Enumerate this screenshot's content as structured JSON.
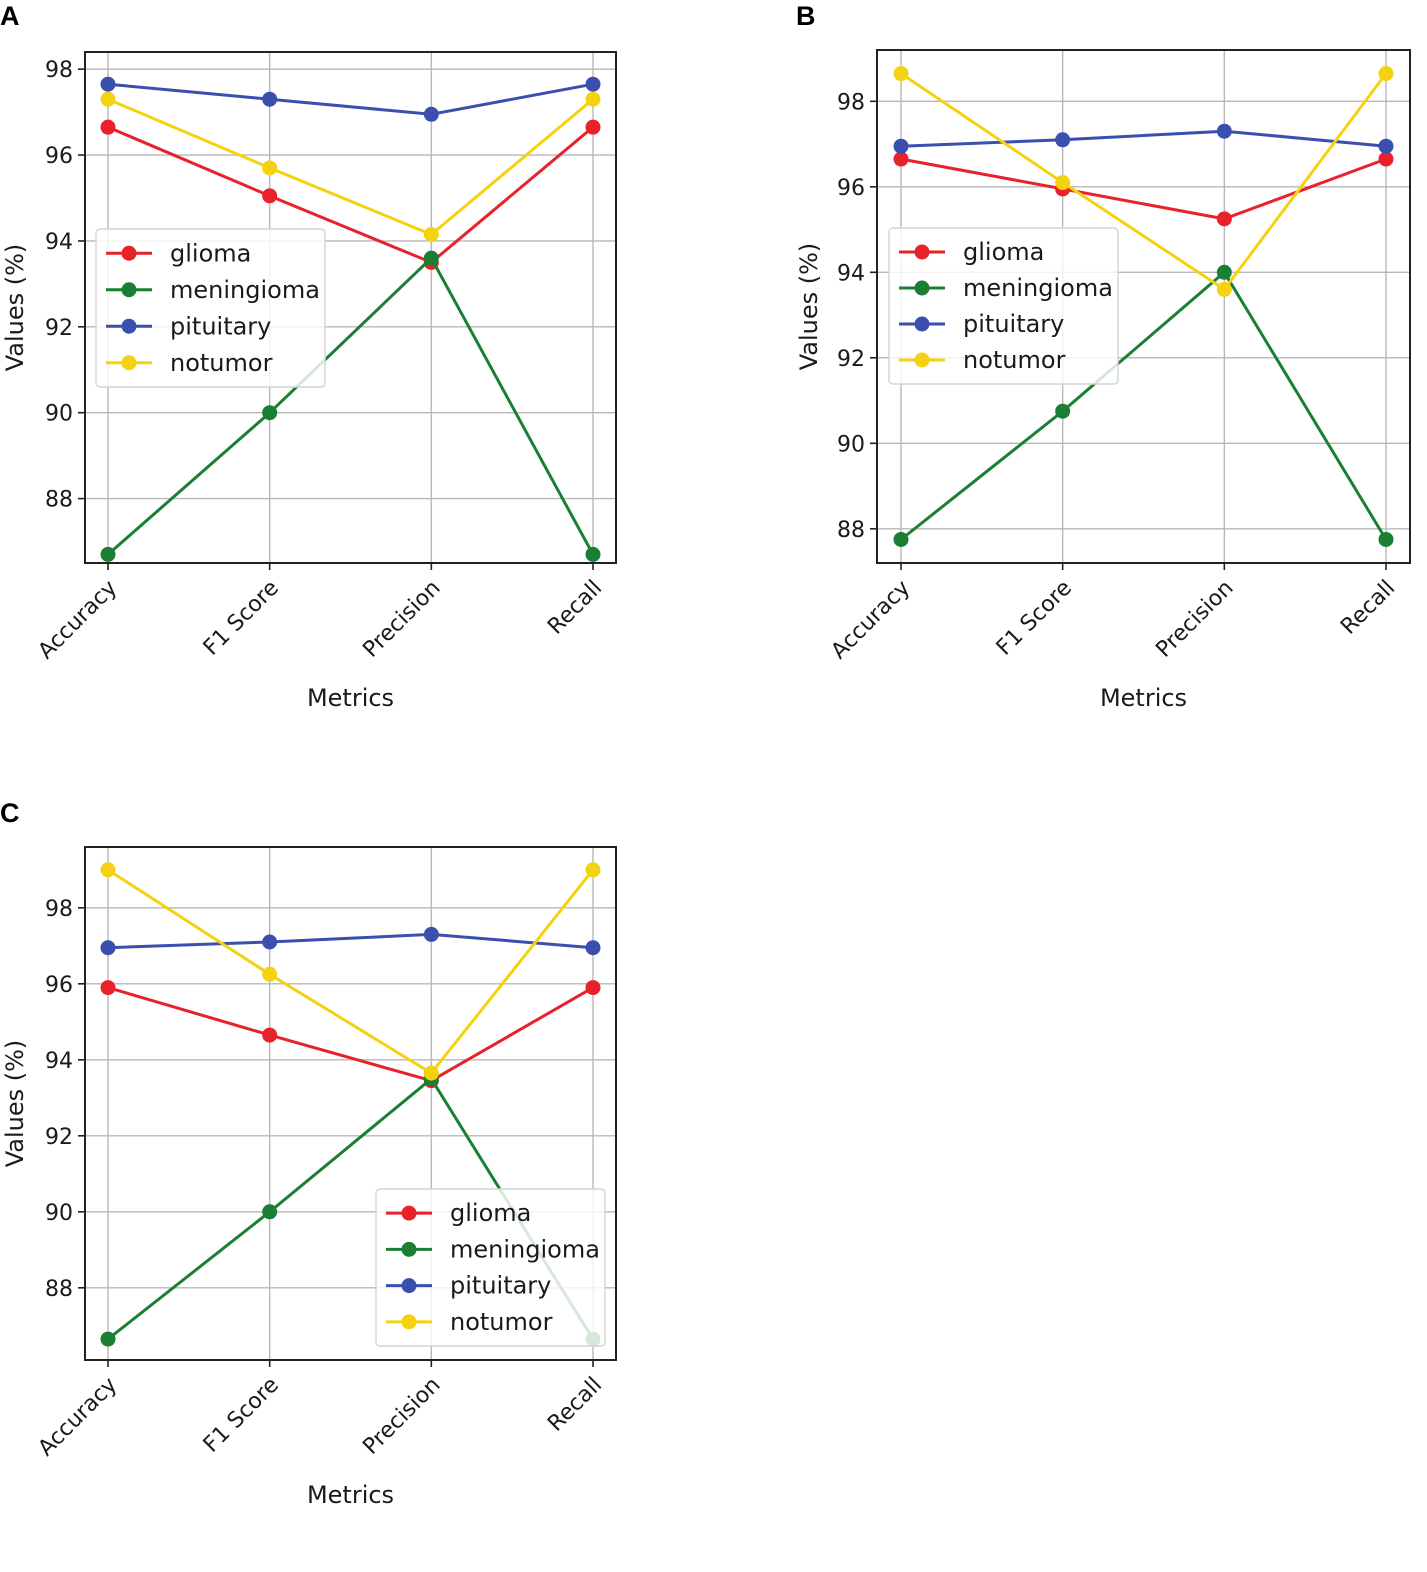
{
  "figure_labels": [
    "A",
    "B",
    "C"
  ],
  "chart_data": [
    {
      "panel": "A",
      "type": "line",
      "title": "",
      "xlabel": "Metrics",
      "ylabel": "Values (%)",
      "categories": [
        "Accuracy",
        "F1 Score",
        "Precision",
        "Recall"
      ],
      "ylim": [
        86.5,
        98.4
      ],
      "yticks": [
        88,
        90,
        92,
        94,
        96,
        98
      ],
      "grid": true,
      "legend_position": "center-left",
      "series": [
        {
          "name": "glioma",
          "color": "#e8222a",
          "values": [
            96.65,
            95.05,
            93.5,
            96.65
          ]
        },
        {
          "name": "meningioma",
          "color": "#1a7f34",
          "values": [
            86.7,
            90.0,
            93.6,
            86.7
          ]
        },
        {
          "name": "pituitary",
          "color": "#3a4fae",
          "values": [
            97.65,
            97.3,
            96.95,
            97.65
          ]
        },
        {
          "name": "notumor",
          "color": "#f5d20f",
          "values": [
            97.3,
            95.7,
            94.15,
            97.3
          ]
        }
      ]
    },
    {
      "panel": "B",
      "type": "line",
      "title": "",
      "xlabel": "Metrics",
      "ylabel": "Values (%)",
      "categories": [
        "Accuracy",
        "F1 Score",
        "Precision",
        "Recall"
      ],
      "ylim": [
        87.2,
        99.2
      ],
      "yticks": [
        88,
        90,
        92,
        94,
        96,
        98
      ],
      "grid": true,
      "legend_position": "center-left",
      "series": [
        {
          "name": "glioma",
          "color": "#e8222a",
          "values": [
            96.65,
            95.95,
            95.25,
            96.65
          ]
        },
        {
          "name": "meningioma",
          "color": "#1a7f34",
          "values": [
            87.75,
            90.75,
            94.0,
            87.75
          ]
        },
        {
          "name": "pituitary",
          "color": "#3a4fae",
          "values": [
            96.95,
            97.1,
            97.3,
            96.95
          ]
        },
        {
          "name": "notumor",
          "color": "#f5d20f",
          "values": [
            98.65,
            96.1,
            93.6,
            98.65
          ]
        }
      ]
    },
    {
      "panel": "C",
      "type": "line",
      "title": "",
      "xlabel": "Metrics",
      "ylabel": "Values (%)",
      "categories": [
        "Accuracy",
        "F1 Score",
        "Precision",
        "Recall"
      ],
      "ylim": [
        86.1,
        99.6
      ],
      "yticks": [
        88,
        90,
        92,
        94,
        96,
        98
      ],
      "grid": true,
      "legend_position": "lower-right",
      "series": [
        {
          "name": "glioma",
          "color": "#e8222a",
          "values": [
            95.9,
            94.65,
            93.45,
            95.9
          ]
        },
        {
          "name": "meningioma",
          "color": "#1a7f34",
          "values": [
            86.65,
            90.0,
            93.5,
            86.65
          ]
        },
        {
          "name": "pituitary",
          "color": "#3a4fae",
          "values": [
            96.95,
            97.1,
            97.3,
            96.95
          ]
        },
        {
          "name": "notumor",
          "color": "#f5d20f",
          "values": [
            99.0,
            96.25,
            93.65,
            99.0
          ]
        }
      ]
    }
  ]
}
